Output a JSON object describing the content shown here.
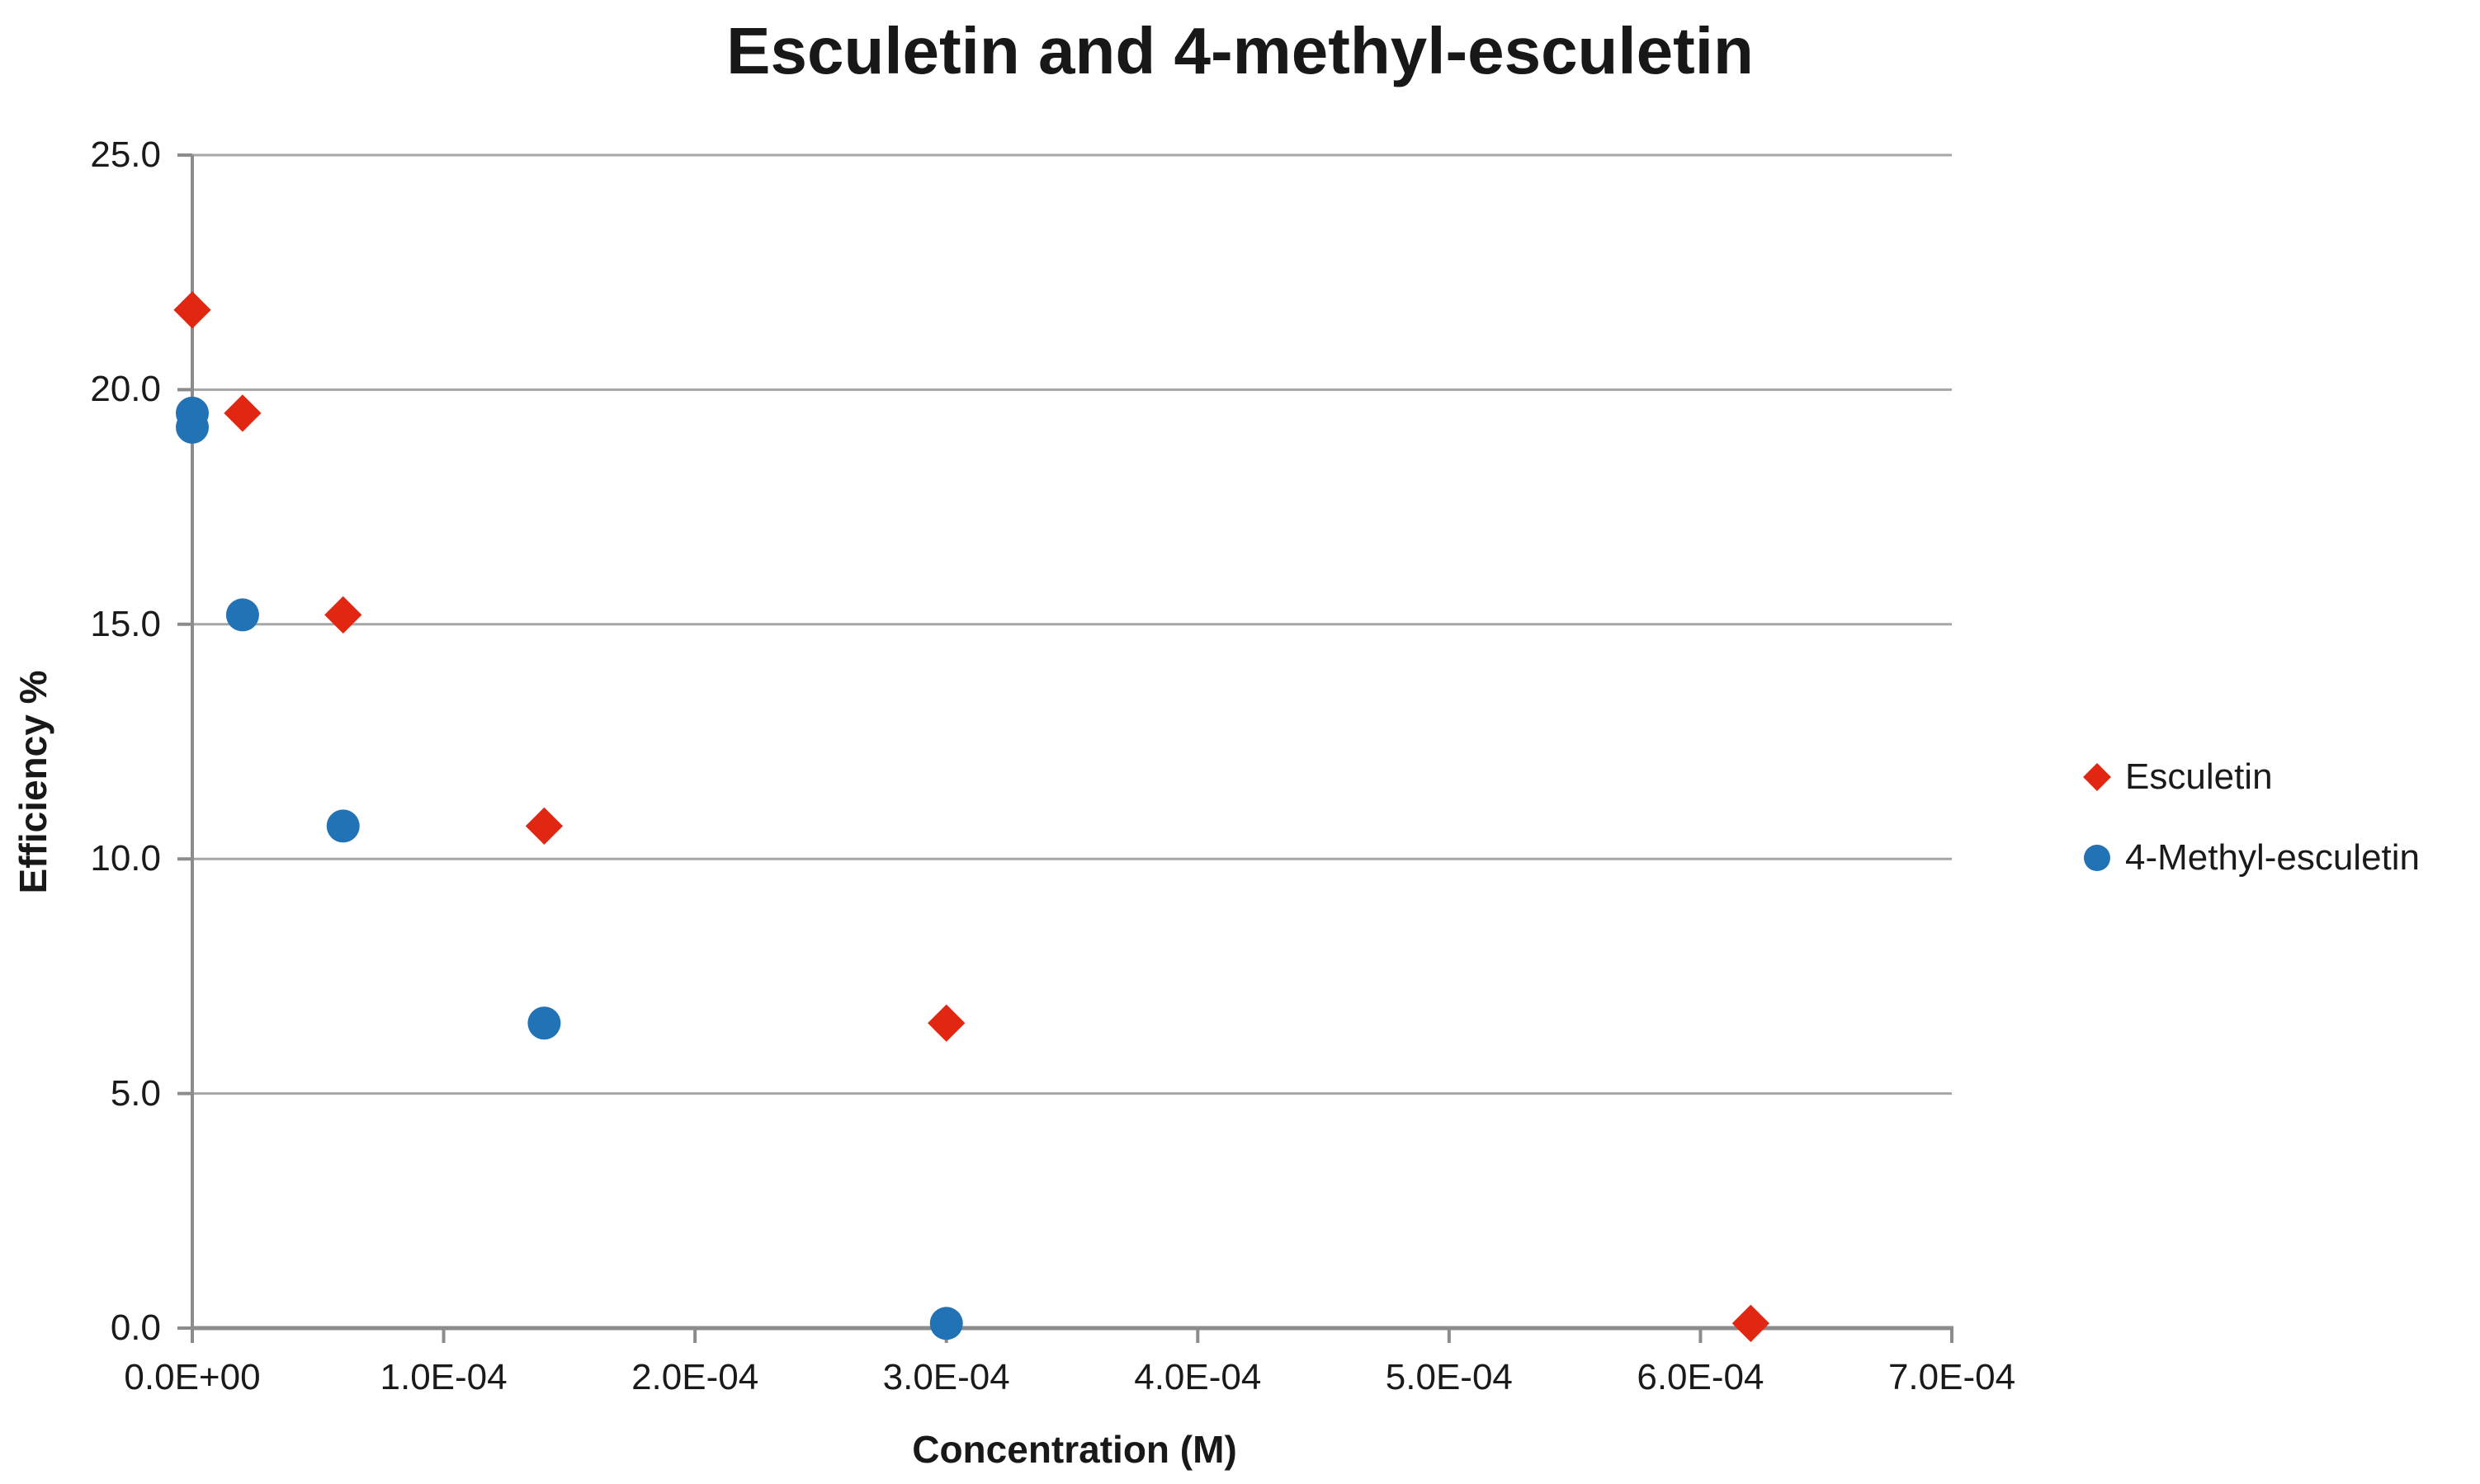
{
  "chart_data": {
    "type": "scatter",
    "title": "Esculetin and 4-methyl-esculetin",
    "xlabel": "Concentration (M)",
    "ylabel": "Efficiency %",
    "xlim": [
      0,
      0.0007
    ],
    "ylim": [
      0,
      25
    ],
    "grid": "horizontal-gridlines-on",
    "legend_position": "right",
    "x_ticks": [
      {
        "value": 0,
        "label": "0.0E+00"
      },
      {
        "value": 0.0001,
        "label": "1.0E-04"
      },
      {
        "value": 0.0002,
        "label": "2.0E-04"
      },
      {
        "value": 0.0003,
        "label": "3.0E-04"
      },
      {
        "value": 0.0004,
        "label": "4.0E-04"
      },
      {
        "value": 0.0005,
        "label": "5.0E-04"
      },
      {
        "value": 0.0006,
        "label": "6.0E-04"
      },
      {
        "value": 0.0007,
        "label": "7.0E-04"
      }
    ],
    "y_ticks": [
      {
        "value": 0,
        "label": "0.0"
      },
      {
        "value": 5,
        "label": "5.0"
      },
      {
        "value": 10,
        "label": "10.0"
      },
      {
        "value": 15,
        "label": "15.0"
      },
      {
        "value": 20,
        "label": "20.0"
      },
      {
        "value": 25,
        "label": "25.0"
      }
    ],
    "series": [
      {
        "name": "Esculetin",
        "marker": "diamond",
        "color": "#E12711",
        "points": [
          [
            0.0,
            21.7
          ],
          [
            2e-05,
            19.5
          ],
          [
            6e-05,
            15.2
          ],
          [
            0.00014,
            10.7
          ],
          [
            0.0003,
            6.5
          ],
          [
            0.00062,
            0.1
          ]
        ]
      },
      {
        "name": "4-Methyl-esculetin",
        "marker": "circle",
        "color": "#2272B6",
        "points": [
          [
            0.0,
            19.5
          ],
          [
            0.0,
            19.2
          ],
          [
            2e-05,
            15.2
          ],
          [
            6e-05,
            10.7
          ],
          [
            0.00014,
            6.5
          ],
          [
            0.0003,
            0.1
          ]
        ]
      }
    ],
    "colors": {
      "gridline": "#A6A6A6",
      "axis": "#8C8C8C",
      "text": "#1A1A1A",
      "background": "#FFFFFF"
    }
  }
}
